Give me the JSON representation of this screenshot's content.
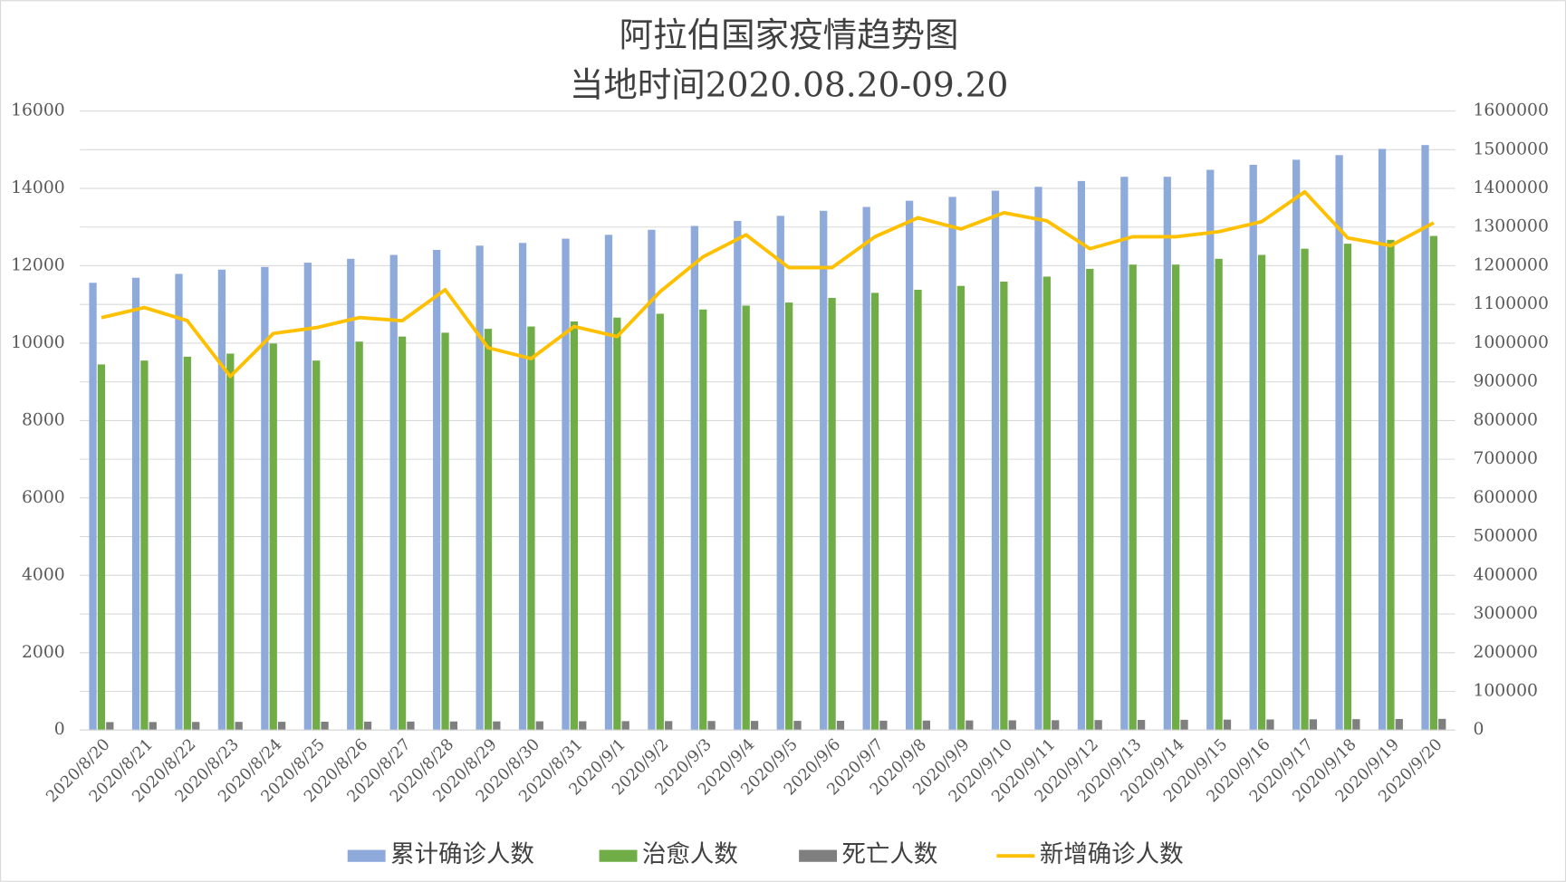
{
  "chart_data": {
    "type": "bar",
    "title": "阿拉伯国家疫情趋势图",
    "subtitle": "当地时间2020.08.20-09.20",
    "categories": [
      "2020/8/20",
      "2020/8/21",
      "2020/8/22",
      "2020/8/23",
      "2020/8/24",
      "2020/8/25",
      "2020/8/26",
      "2020/8/27",
      "2020/8/28",
      "2020/8/29",
      "2020/8/30",
      "2020/8/31",
      "2020/9/1",
      "2020/9/2",
      "2020/9/3",
      "2020/9/4",
      "2020/9/5",
      "2020/9/6",
      "2020/9/7",
      "2020/9/8",
      "2020/9/9",
      "2020/9/10",
      "2020/9/11",
      "2020/9/12",
      "2020/9/13",
      "2020/9/14",
      "2020/9/15",
      "2020/9/16",
      "2020/9/17",
      "2020/9/18",
      "2020/9/19",
      "2020/9/20"
    ],
    "series": [
      {
        "name": "累计确诊人数",
        "type": "bar",
        "color": "#8eaadb",
        "values": [
          11560,
          11690,
          11790,
          11900,
          11970,
          12080,
          12180,
          12280,
          12410,
          12520,
          12590,
          12700,
          12800,
          12930,
          13030,
          13160,
          13290,
          13420,
          13520,
          13680,
          13780,
          13940,
          14040,
          14190,
          14300,
          14300,
          14480,
          14610,
          14740,
          14860,
          15020,
          15120
        ]
      },
      {
        "name": "治愈人数",
        "type": "bar",
        "color": "#70ad47",
        "values": [
          9450,
          9550,
          9650,
          9730,
          9990,
          9550,
          10040,
          10170,
          10270,
          10370,
          10430,
          10560,
          10660,
          10760,
          10870,
          10970,
          11050,
          11170,
          11300,
          11380,
          11480,
          11590,
          11720,
          11920,
          12030,
          12030,
          12180,
          12280,
          12440,
          12570,
          12670,
          12770
        ]
      },
      {
        "name": "死亡人数",
        "type": "bar",
        "color": "#7f7f7f",
        "values": [
          206,
          208,
          210,
          212,
          214,
          216,
          218,
          220,
          222,
          224,
          226,
          228,
          230,
          232,
          234,
          236,
          238,
          240,
          243,
          246,
          249,
          252,
          255,
          258,
          262,
          266,
          270,
          274,
          278,
          282,
          286,
          290
        ]
      },
      {
        "name": "新增确诊人数",
        "type": "line",
        "axis": "y2",
        "color": "#ffc000",
        "values": [
          1066000,
          1092000,
          1058000,
          914000,
          1025000,
          1040000,
          1066000,
          1058000,
          1138000,
          988000,
          960000,
          1043000,
          1017000,
          1133000,
          1223000,
          1280000,
          1195000,
          1195000,
          1275000,
          1324000,
          1295000,
          1337000,
          1316000,
          1244000,
          1275000,
          1275000,
          1288000,
          1314000,
          1391000,
          1272000,
          1252000,
          1311000
        ]
      }
    ],
    "ylim": [
      0,
      16000
    ],
    "yticks": [
      0,
      2000,
      4000,
      6000,
      8000,
      10000,
      12000,
      14000,
      16000
    ],
    "y2lim": [
      0,
      1600000
    ],
    "y2ticks": [
      0,
      100000,
      200000,
      300000,
      400000,
      500000,
      600000,
      700000,
      800000,
      900000,
      1000000,
      1100000,
      1200000,
      1300000,
      1400000,
      1500000,
      1600000
    ],
    "grid": true,
    "legend": "bottom"
  }
}
